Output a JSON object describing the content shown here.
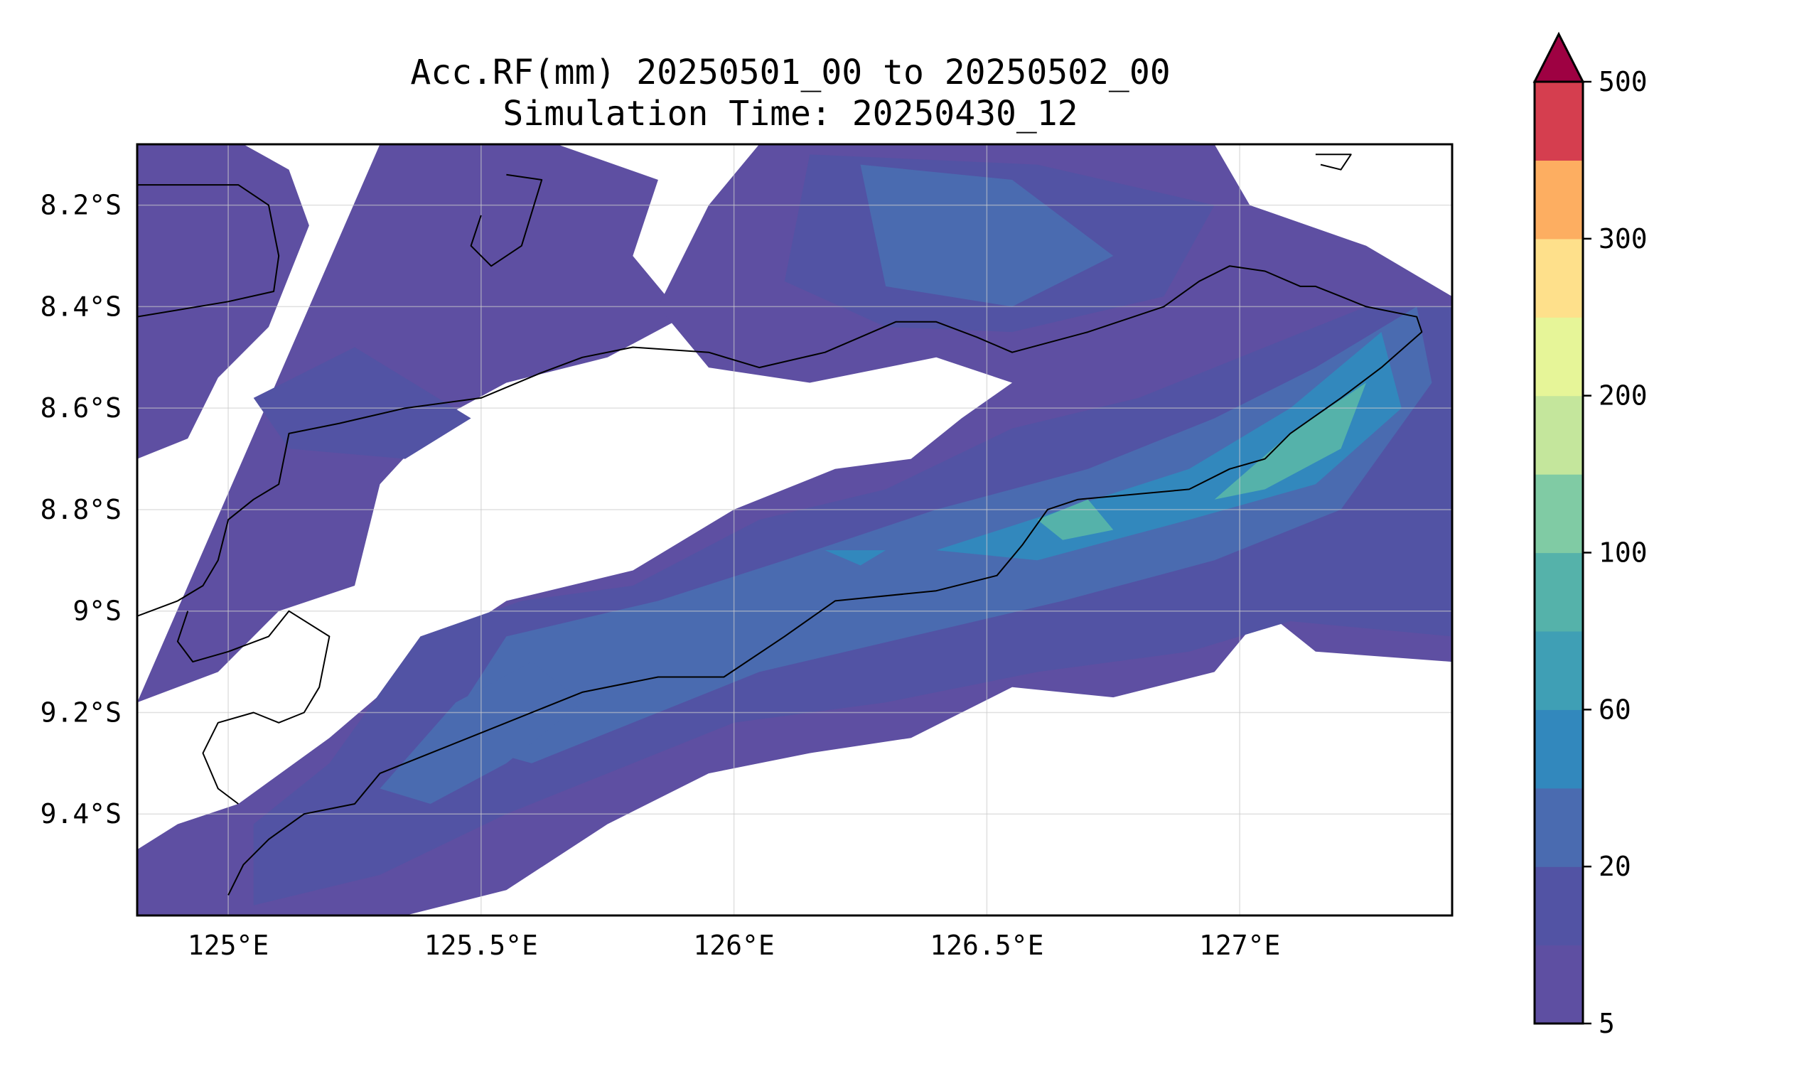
{
  "figure": {
    "title_line1": "Acc.RF(mm) 20250501_00 to 20250502_00",
    "title_line2": "Simulation Time: 20250430_12"
  },
  "map": {
    "extent": {
      "lon_min": 124.82,
      "lon_max": 127.42,
      "lat_min": -9.6,
      "lat_max": -8.08
    },
    "gridlines": true,
    "x_ticks": [
      {
        "value": 125.0,
        "label": "125°E"
      },
      {
        "value": 125.5,
        "label": "125.5°E"
      },
      {
        "value": 126.0,
        "label": "126°E"
      },
      {
        "value": 126.5,
        "label": "126.5°E"
      },
      {
        "value": 127.0,
        "label": "127°E"
      }
    ],
    "y_ticks": [
      {
        "value": -8.2,
        "label": "8.2°S"
      },
      {
        "value": -8.4,
        "label": "8.4°S"
      },
      {
        "value": -8.6,
        "label": "8.6°S"
      },
      {
        "value": -8.8,
        "label": "8.8°S"
      },
      {
        "value": -9.0,
        "label": "9°S"
      },
      {
        "value": -9.2,
        "label": "9.2°S"
      },
      {
        "value": -9.4,
        "label": "9.4°S"
      }
    ]
  },
  "colorbar": {
    "extend": "max",
    "extend_color": "#9e0142",
    "levels": [
      5,
      10,
      20,
      40,
      60,
      80,
      100,
      150,
      200,
      250,
      300,
      400,
      500
    ],
    "colors": [
      "#5e4fa2",
      "#5253a4",
      "#4a6bb0",
      "#3288bd",
      "#3f9fb5",
      "#55b2aa",
      "#80cba4",
      "#c4e69c",
      "#e6f598",
      "#fee08b",
      "#fdae61",
      "#d53e4f"
    ],
    "tick_labels": [
      {
        "level_index": 0,
        "label": "5"
      },
      {
        "level_index": 2,
        "label": "20"
      },
      {
        "level_index": 4,
        "label": "60"
      },
      {
        "level_index": 6,
        "label": "100"
      },
      {
        "level_index": 8,
        "label": "200"
      },
      {
        "level_index": 10,
        "label": "300"
      },
      {
        "level_index": 12,
        "label": "500"
      }
    ]
  },
  "rain_field": {
    "units": "mm",
    "bands": [
      {
        "level_min": 5,
        "color": "#5e4fa2",
        "polygons": [
          [
            [
              124.82,
              -8.08
            ],
            [
              125.03,
              -8.08
            ],
            [
              125.12,
              -8.13
            ],
            [
              125.16,
              -8.24
            ],
            [
              125.08,
              -8.44
            ],
            [
              124.98,
              -8.54
            ],
            [
              124.92,
              -8.66
            ],
            [
              124.82,
              -8.7
            ]
          ],
          [
            [
              125.3,
              -8.08
            ],
            [
              125.65,
              -8.08
            ],
            [
              125.85,
              -8.15
            ],
            [
              125.8,
              -8.3
            ],
            [
              125.9,
              -8.42
            ],
            [
              125.75,
              -8.5
            ],
            [
              125.55,
              -8.55
            ],
            [
              125.42,
              -8.62
            ],
            [
              125.3,
              -8.75
            ],
            [
              125.25,
              -8.95
            ],
            [
              125.1,
              -9.0
            ],
            [
              124.98,
              -9.12
            ],
            [
              124.82,
              -9.18
            ]
          ],
          [
            [
              126.05,
              -8.08
            ],
            [
              126.95,
              -8.08
            ],
            [
              127.02,
              -8.2
            ],
            [
              127.25,
              -8.28
            ],
            [
              127.42,
              -8.38
            ],
            [
              127.42,
              -9.1
            ],
            [
              127.15,
              -9.08
            ],
            [
              127.05,
              -9.0
            ],
            [
              126.95,
              -9.12
            ],
            [
              126.75,
              -9.17
            ],
            [
              126.55,
              -9.15
            ],
            [
              126.35,
              -9.25
            ],
            [
              126.15,
              -9.28
            ],
            [
              125.95,
              -9.32
            ],
            [
              125.75,
              -9.42
            ],
            [
              125.55,
              -9.55
            ],
            [
              125.35,
              -9.6
            ],
            [
              124.82,
              -9.6
            ],
            [
              124.82,
              -9.47
            ],
            [
              124.9,
              -9.42
            ],
            [
              125.02,
              -9.38
            ],
            [
              125.2,
              -9.25
            ],
            [
              125.4,
              -9.08
            ],
            [
              125.55,
              -8.98
            ],
            [
              125.8,
              -8.92
            ],
            [
              126.0,
              -8.8
            ],
            [
              126.2,
              -8.72
            ],
            [
              126.35,
              -8.7
            ],
            [
              126.45,
              -8.62
            ],
            [
              126.55,
              -8.55
            ],
            [
              126.4,
              -8.5
            ],
            [
              126.15,
              -8.55
            ],
            [
              125.95,
              -8.52
            ],
            [
              125.85,
              -8.4
            ],
            [
              125.95,
              -8.2
            ]
          ]
        ]
      },
      {
        "level_min": 10,
        "color": "#5253a4",
        "polygons": [
          [
            [
              125.38,
              -9.05
            ],
            [
              125.58,
              -8.98
            ],
            [
              125.8,
              -8.95
            ],
            [
              126.05,
              -8.82
            ],
            [
              126.3,
              -8.76
            ],
            [
              126.55,
              -8.64
            ],
            [
              126.8,
              -8.58
            ],
            [
              127.05,
              -8.48
            ],
            [
              127.25,
              -8.4
            ],
            [
              127.42,
              -8.4
            ],
            [
              127.42,
              -9.05
            ],
            [
              127.1,
              -9.02
            ],
            [
              126.9,
              -9.08
            ],
            [
              126.6,
              -9.12
            ],
            [
              126.3,
              -9.18
            ],
            [
              126.0,
              -9.22
            ],
            [
              125.75,
              -9.32
            ],
            [
              125.55,
              -9.4
            ],
            [
              125.3,
              -9.52
            ],
            [
              125.05,
              -9.58
            ],
            [
              125.05,
              -9.42
            ],
            [
              125.2,
              -9.3
            ]
          ],
          [
            [
              126.15,
              -8.1
            ],
            [
              126.6,
              -8.12
            ],
            [
              126.95,
              -8.2
            ],
            [
              126.85,
              -8.38
            ],
            [
              126.55,
              -8.45
            ],
            [
              126.3,
              -8.44
            ],
            [
              126.1,
              -8.35
            ]
          ],
          [
            [
              125.25,
              -8.48
            ],
            [
              125.48,
              -8.62
            ],
            [
              125.35,
              -8.7
            ],
            [
              125.12,
              -8.68
            ],
            [
              125.05,
              -8.58
            ]
          ]
        ]
      },
      {
        "level_min": 20,
        "color": "#4a6bb0",
        "polygons": [
          [
            [
              125.55,
              -9.05
            ],
            [
              125.85,
              -8.98
            ],
            [
              126.1,
              -8.9
            ],
            [
              126.4,
              -8.8
            ],
            [
              126.7,
              -8.72
            ],
            [
              126.95,
              -8.62
            ],
            [
              127.15,
              -8.52
            ],
            [
              127.35,
              -8.4
            ],
            [
              127.38,
              -8.55
            ],
            [
              127.2,
              -8.8
            ],
            [
              126.95,
              -8.9
            ],
            [
              126.65,
              -8.98
            ],
            [
              126.35,
              -9.05
            ],
            [
              126.05,
              -9.12
            ],
            [
              125.8,
              -9.22
            ],
            [
              125.6,
              -9.3
            ],
            [
              125.42,
              -9.25
            ]
          ],
          [
            [
              126.25,
              -8.12
            ],
            [
              126.55,
              -8.15
            ],
            [
              126.75,
              -8.3
            ],
            [
              126.55,
              -8.4
            ],
            [
              126.3,
              -8.36
            ]
          ],
          [
            [
              125.45,
              -9.18
            ],
            [
              125.6,
              -9.1
            ],
            [
              125.7,
              -9.18
            ],
            [
              125.55,
              -9.3
            ],
            [
              125.4,
              -9.38
            ],
            [
              125.3,
              -9.35
            ]
          ]
        ]
      },
      {
        "level_min": 40,
        "color": "#3288bd",
        "polygons": [
          [
            [
              126.4,
              -8.88
            ],
            [
              126.65,
              -8.8
            ],
            [
              126.9,
              -8.72
            ],
            [
              127.1,
              -8.6
            ],
            [
              127.28,
              -8.45
            ],
            [
              127.32,
              -8.6
            ],
            [
              127.15,
              -8.75
            ],
            [
              126.9,
              -8.82
            ],
            [
              126.6,
              -8.9
            ]
          ],
          [
            [
              126.18,
              -8.88
            ],
            [
              126.3,
              -8.88
            ],
            [
              126.25,
              -8.91
            ]
          ]
        ]
      },
      {
        "level_min": 60,
        "color": "#55b2aa",
        "polygons": [
          [
            [
              126.95,
              -8.78
            ],
            [
              127.1,
              -8.65
            ],
            [
              127.25,
              -8.55
            ],
            [
              127.2,
              -8.68
            ],
            [
              127.05,
              -8.76
            ]
          ],
          [
            [
              126.6,
              -8.82
            ],
            [
              126.7,
              -8.78
            ],
            [
              126.75,
              -8.84
            ],
            [
              126.65,
              -8.86
            ]
          ]
        ]
      }
    ]
  },
  "coastlines": [
    [
      [
        124.82,
        -8.16
      ],
      [
        125.02,
        -8.16
      ],
      [
        125.08,
        -8.2
      ],
      [
        125.1,
        -8.3
      ],
      [
        125.09,
        -8.37
      ],
      [
        125.0,
        -8.39
      ],
      [
        124.82,
        -8.42
      ]
    ],
    [
      [
        125.0,
        -9.56
      ],
      [
        125.03,
        -9.5
      ],
      [
        125.08,
        -9.45
      ],
      [
        125.15,
        -9.4
      ],
      [
        125.25,
        -9.38
      ],
      [
        125.3,
        -9.32
      ],
      [
        125.4,
        -9.28
      ],
      [
        125.55,
        -9.22
      ],
      [
        125.7,
        -9.16
      ],
      [
        125.85,
        -9.13
      ],
      [
        125.98,
        -9.13
      ],
      [
        126.1,
        -9.05
      ],
      [
        126.2,
        -8.98
      ],
      [
        126.4,
        -8.96
      ],
      [
        126.52,
        -8.93
      ],
      [
        126.57,
        -8.87
      ],
      [
        126.62,
        -8.8
      ],
      [
        126.68,
        -8.78
      ],
      [
        126.9,
        -8.76
      ],
      [
        126.98,
        -8.72
      ],
      [
        127.05,
        -8.7
      ],
      [
        127.1,
        -8.65
      ],
      [
        127.2,
        -8.58
      ],
      [
        127.28,
        -8.52
      ],
      [
        127.36,
        -8.45
      ],
      [
        127.35,
        -8.42
      ],
      [
        127.25,
        -8.4
      ],
      [
        127.2,
        -8.38
      ],
      [
        127.15,
        -8.36
      ],
      [
        127.12,
        -8.36
      ],
      [
        127.05,
        -8.33
      ],
      [
        126.98,
        -8.32
      ],
      [
        126.92,
        -8.35
      ],
      [
        126.85,
        -8.4
      ],
      [
        126.7,
        -8.45
      ],
      [
        126.55,
        -8.49
      ],
      [
        126.48,
        -8.46
      ],
      [
        126.4,
        -8.43
      ],
      [
        126.32,
        -8.43
      ],
      [
        126.25,
        -8.46
      ],
      [
        126.18,
        -8.49
      ],
      [
        126.05,
        -8.52
      ],
      [
        125.95,
        -8.49
      ],
      [
        125.8,
        -8.48
      ],
      [
        125.7,
        -8.5
      ],
      [
        125.62,
        -8.53
      ],
      [
        125.5,
        -8.58
      ],
      [
        125.35,
        -8.6
      ],
      [
        125.22,
        -8.63
      ],
      [
        125.12,
        -8.65
      ],
      [
        125.1,
        -8.75
      ],
      [
        125.05,
        -8.78
      ],
      [
        125.0,
        -8.82
      ],
      [
        124.98,
        -8.9
      ],
      [
        124.95,
        -8.95
      ],
      [
        124.9,
        -8.98
      ],
      [
        124.82,
        -9.01
      ]
    ],
    [
      [
        124.92,
        -9.0
      ],
      [
        124.9,
        -9.06
      ],
      [
        124.93,
        -9.1
      ],
      [
        125.0,
        -9.08
      ],
      [
        125.08,
        -9.05
      ],
      [
        125.12,
        -9.0
      ],
      [
        125.2,
        -9.05
      ],
      [
        125.18,
        -9.15
      ],
      [
        125.15,
        -9.2
      ],
      [
        125.1,
        -9.22
      ],
      [
        125.05,
        -9.2
      ],
      [
        124.98,
        -9.22
      ],
      [
        124.95,
        -9.28
      ],
      [
        124.98,
        -9.35
      ],
      [
        125.02,
        -9.38
      ]
    ],
    [
      [
        125.55,
        -8.14
      ],
      [
        125.62,
        -8.15
      ],
      [
        125.58,
        -8.28
      ],
      [
        125.52,
        -8.32
      ],
      [
        125.48,
        -8.28
      ],
      [
        125.5,
        -8.22
      ]
    ],
    [
      [
        127.15,
        -8.1
      ],
      [
        127.22,
        -8.1
      ],
      [
        127.2,
        -8.13
      ],
      [
        127.16,
        -8.12
      ]
    ]
  ]
}
